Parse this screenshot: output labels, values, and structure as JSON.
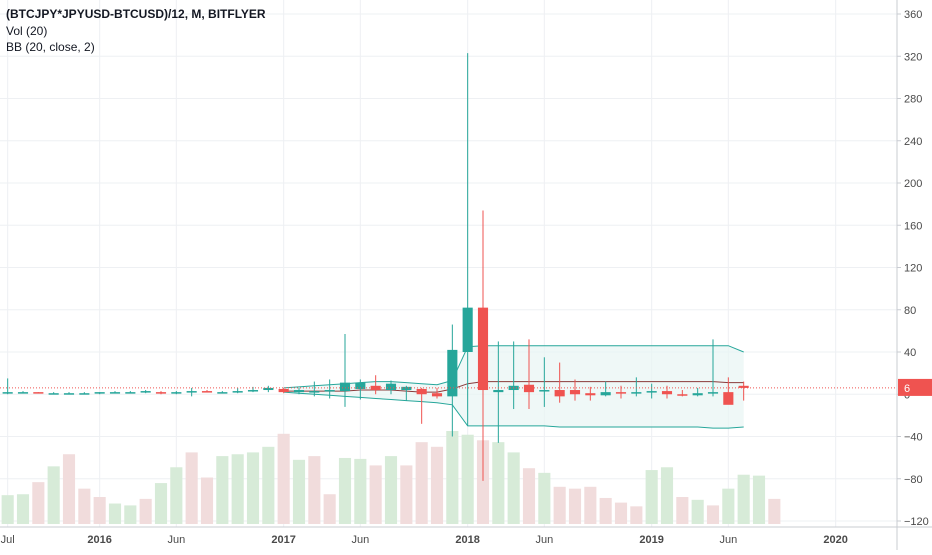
{
  "legend": {
    "title": "(BTCJPY*JPYUSD-BTCUSD)/12, M, BITFLYER",
    "volume": "Vol (20)",
    "bb": "BB (20, close, 2)"
  },
  "last_price_label": "6",
  "colors": {
    "up": "#26a69a",
    "down": "#ef5350",
    "up_volume": "#d7ebd8",
    "down_volume": "#f1dcdc",
    "bb_band": "#26a69a",
    "bb_basis": "#8b3a3a",
    "bb_fill": "#e8f5f3",
    "price_line": "#ef5350",
    "grid": "#eef0f3",
    "axis_text": "#4a4a4a"
  },
  "chart_data": {
    "type": "candlestick",
    "y_axis_ticks": [
      "360",
      "320",
      "280",
      "240",
      "200",
      "160",
      "120",
      "80",
      "40",
      "0",
      "−40",
      "−80",
      "−120"
    ],
    "y_axis_values": [
      360,
      320,
      280,
      240,
      200,
      160,
      120,
      80,
      40,
      0,
      -40,
      -80,
      -120
    ],
    "ylim": [
      -120,
      360
    ],
    "x_axis_labels": [
      "Jul",
      "2016",
      "Jun",
      "2017",
      "Jun",
      "2018",
      "Jun",
      "2019",
      "Jun",
      "2020"
    ],
    "x_axis_months": [
      0,
      6,
      11,
      18,
      23,
      30,
      35,
      42,
      47,
      54
    ],
    "x_month_range": [
      -0.5,
      58
    ],
    "last_price": 6,
    "candles": [
      {
        "m": 0,
        "o": 2,
        "h": 15,
        "l": 0,
        "c": 2
      },
      {
        "m": 1,
        "o": 2,
        "h": 3,
        "l": 1,
        "c": 2
      },
      {
        "m": 2,
        "o": 2,
        "h": 2,
        "l": 1,
        "c": 1
      },
      {
        "m": 3,
        "o": 1,
        "h": 2,
        "l": 0,
        "c": 1
      },
      {
        "m": 4,
        "o": 1,
        "h": 2,
        "l": 0,
        "c": 1
      },
      {
        "m": 5,
        "o": 1,
        "h": 2,
        "l": 0,
        "c": 1
      },
      {
        "m": 6,
        "o": 1,
        "h": 2,
        "l": 0,
        "c": 2
      },
      {
        "m": 7,
        "o": 2,
        "h": 3,
        "l": 1,
        "c": 2
      },
      {
        "m": 8,
        "o": 2,
        "h": 3,
        "l": 1,
        "c": 2
      },
      {
        "m": 9,
        "o": 2,
        "h": 4,
        "l": 1,
        "c": 3
      },
      {
        "m": 10,
        "o": 2,
        "h": 3,
        "l": 0,
        "c": 1
      },
      {
        "m": 11,
        "o": 1,
        "h": 3,
        "l": 0,
        "c": 2
      },
      {
        "m": 12,
        "o": 2,
        "h": 6,
        "l": -2,
        "c": 3
      },
      {
        "m": 13,
        "o": 3,
        "h": 4,
        "l": 2,
        "c": 2
      },
      {
        "m": 14,
        "o": 2,
        "h": 3,
        "l": 1,
        "c": 2
      },
      {
        "m": 15,
        "o": 2,
        "h": 6,
        "l": 1,
        "c": 3
      },
      {
        "m": 16,
        "o": 3,
        "h": 7,
        "l": 2,
        "c": 4
      },
      {
        "m": 17,
        "o": 4,
        "h": 8,
        "l": 2,
        "c": 6
      },
      {
        "m": 18,
        "o": 5,
        "h": 6,
        "l": 1,
        "c": 2
      },
      {
        "m": 19,
        "o": 2,
        "h": 6,
        "l": 0,
        "c": 4
      },
      {
        "m": 20,
        "o": 3,
        "h": 12,
        "l": -2,
        "c": 3
      },
      {
        "m": 21,
        "o": 3,
        "h": 14,
        "l": -4,
        "c": 4
      },
      {
        "m": 22,
        "o": 3,
        "h": 57,
        "l": -12,
        "c": 11
      },
      {
        "m": 23,
        "o": 5,
        "h": 14,
        "l": -5,
        "c": 11
      },
      {
        "m": 24,
        "o": 8,
        "h": 18,
        "l": 0,
        "c": 4
      },
      {
        "m": 25,
        "o": 4,
        "h": 13,
        "l": 0,
        "c": 10
      },
      {
        "m": 26,
        "o": 4,
        "h": 8,
        "l": -6,
        "c": 7
      },
      {
        "m": 27,
        "o": 5,
        "h": 6,
        "l": -28,
        "c": 0
      },
      {
        "m": 28,
        "o": 1,
        "h": 6,
        "l": -4,
        "c": -2
      },
      {
        "m": 29,
        "o": -2,
        "h": 66,
        "l": -40,
        "c": 42
      },
      {
        "m": 30,
        "o": 40,
        "h": 323,
        "l": -30,
        "c": 82
      },
      {
        "m": 31,
        "o": 82,
        "h": 174,
        "l": -82,
        "c": 4
      },
      {
        "m": 32,
        "o": 2,
        "h": 50,
        "l": -46,
        "c": 4
      },
      {
        "m": 33,
        "o": 4,
        "h": 50,
        "l": -14,
        "c": 8
      },
      {
        "m": 34,
        "o": 9,
        "h": 52,
        "l": -14,
        "c": 2
      },
      {
        "m": 35,
        "o": 3,
        "h": 35,
        "l": -12,
        "c": 4
      },
      {
        "m": 36,
        "o": 4,
        "h": 30,
        "l": -8,
        "c": -2
      },
      {
        "m": 37,
        "o": 4,
        "h": 14,
        "l": -6,
        "c": 0
      },
      {
        "m": 38,
        "o": 1,
        "h": 7,
        "l": -6,
        "c": -1
      },
      {
        "m": 39,
        "o": -1,
        "h": 12,
        "l": -2,
        "c": 2
      },
      {
        "m": 40,
        "o": 2,
        "h": 8,
        "l": -4,
        "c": 1
      },
      {
        "m": 41,
        "o": 2,
        "h": 16,
        "l": -2,
        "c": 2
      },
      {
        "m": 42,
        "o": 2,
        "h": 10,
        "l": -4,
        "c": 3
      },
      {
        "m": 43,
        "o": 3,
        "h": 8,
        "l": -4,
        "c": 0
      },
      {
        "m": 44,
        "o": 0,
        "h": 4,
        "l": -2,
        "c": -1
      },
      {
        "m": 45,
        "o": -1,
        "h": 6,
        "l": -2,
        "c": 1
      },
      {
        "m": 46,
        "o": 1,
        "h": 52,
        "l": -2,
        "c": 2
      },
      {
        "m": 47,
        "o": 2,
        "h": 16,
        "l": -8,
        "c": -10
      },
      {
        "m": 48,
        "o": 8,
        "h": 12,
        "l": -6,
        "c": 6
      }
    ],
    "bollinger": {
      "months": [
        18,
        19,
        20,
        21,
        22,
        23,
        24,
        25,
        26,
        27,
        28,
        29,
        30,
        31,
        32,
        33,
        34,
        35,
        36,
        37,
        38,
        39,
        40,
        41,
        42,
        43,
        44,
        45,
        46,
        47,
        48
      ],
      "upper": [
        6,
        7,
        8,
        9,
        10,
        11,
        12,
        12,
        11,
        10,
        9,
        13,
        45,
        46,
        46,
        46,
        46,
        46,
        46,
        46,
        46,
        46,
        46,
        46,
        46,
        46,
        46,
        46,
        46,
        46,
        40
      ],
      "basis": [
        3,
        3,
        3,
        3,
        3,
        4,
        4,
        4,
        3,
        2,
        2,
        5,
        10,
        12,
        12,
        12,
        12,
        12,
        12,
        12,
        12,
        12,
        12,
        12,
        12,
        12,
        12,
        12,
        12,
        11,
        11
      ],
      "lower": [
        2,
        1,
        0,
        -1,
        -2,
        -3,
        -4,
        -5,
        -6,
        -7,
        -8,
        -10,
        -30,
        -30,
        -30,
        -30,
        -30,
        -30,
        -31,
        -31,
        -31,
        -31,
        -31,
        -31,
        -31,
        -31,
        -31,
        -31,
        -32,
        -32,
        -31
      ]
    },
    "volume": {
      "vmax": 100,
      "bars": [
        {
          "m": 0,
          "v": 31,
          "up": true
        },
        {
          "m": 1,
          "v": 32,
          "up": true
        },
        {
          "m": 2,
          "v": 45,
          "up": false
        },
        {
          "m": 3,
          "v": 62,
          "up": true
        },
        {
          "m": 4,
          "v": 75,
          "up": false
        },
        {
          "m": 5,
          "v": 38,
          "up": false
        },
        {
          "m": 6,
          "v": 29,
          "up": false
        },
        {
          "m": 7,
          "v": 22,
          "up": true
        },
        {
          "m": 8,
          "v": 20,
          "up": true
        },
        {
          "m": 9,
          "v": 27,
          "up": false
        },
        {
          "m": 10,
          "v": 44,
          "up": true
        },
        {
          "m": 11,
          "v": 61,
          "up": true
        },
        {
          "m": 12,
          "v": 77,
          "up": false
        },
        {
          "m": 13,
          "v": 50,
          "up": false
        },
        {
          "m": 14,
          "v": 73,
          "up": true
        },
        {
          "m": 15,
          "v": 75,
          "up": true
        },
        {
          "m": 16,
          "v": 77,
          "up": true
        },
        {
          "m": 17,
          "v": 83,
          "up": true
        },
        {
          "m": 18,
          "v": 97,
          "up": false
        },
        {
          "m": 19,
          "v": 69,
          "up": true
        },
        {
          "m": 20,
          "v": 73,
          "up": false
        },
        {
          "m": 21,
          "v": 32,
          "up": false
        },
        {
          "m": 22,
          "v": 71,
          "up": true
        },
        {
          "m": 23,
          "v": 70,
          "up": true
        },
        {
          "m": 24,
          "v": 63,
          "up": false
        },
        {
          "m": 25,
          "v": 73,
          "up": true
        },
        {
          "m": 26,
          "v": 63,
          "up": false
        },
        {
          "m": 27,
          "v": 88,
          "up": false
        },
        {
          "m": 28,
          "v": 83,
          "up": false
        },
        {
          "m": 29,
          "v": 100,
          "up": true
        },
        {
          "m": 30,
          "v": 96,
          "up": true
        },
        {
          "m": 31,
          "v": 90,
          "up": false
        },
        {
          "m": 32,
          "v": 88,
          "up": true
        },
        {
          "m": 33,
          "v": 77,
          "up": true
        },
        {
          "m": 34,
          "v": 60,
          "up": false
        },
        {
          "m": 35,
          "v": 55,
          "up": true
        },
        {
          "m": 36,
          "v": 40,
          "up": false
        },
        {
          "m": 37,
          "v": 38,
          "up": false
        },
        {
          "m": 38,
          "v": 40,
          "up": false
        },
        {
          "m": 39,
          "v": 28,
          "up": false
        },
        {
          "m": 40,
          "v": 23,
          "up": false
        },
        {
          "m": 41,
          "v": 19,
          "up": false
        },
        {
          "m": 42,
          "v": 58,
          "up": true
        },
        {
          "m": 43,
          "v": 61,
          "up": true
        },
        {
          "m": 44,
          "v": 29,
          "up": false
        },
        {
          "m": 45,
          "v": 26,
          "up": true
        },
        {
          "m": 46,
          "v": 20,
          "up": false
        },
        {
          "m": 47,
          "v": 38,
          "up": true
        },
        {
          "m": 48,
          "v": 53,
          "up": true
        },
        {
          "m": 49,
          "v": 52,
          "up": true
        },
        {
          "m": 50,
          "v": 27,
          "up": false
        }
      ]
    }
  }
}
